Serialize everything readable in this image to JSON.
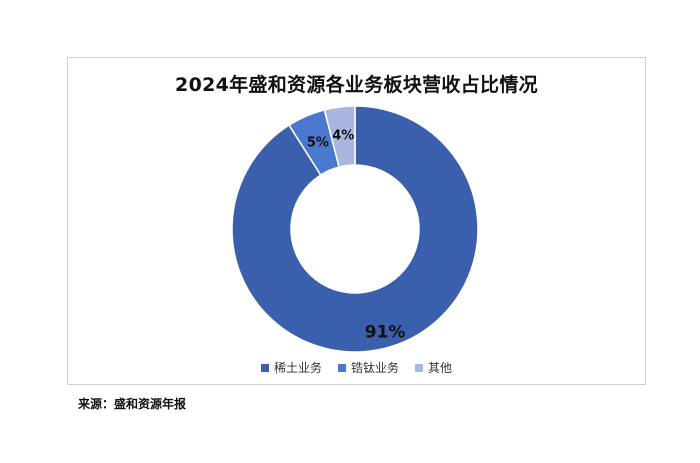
{
  "chart_data": {
    "type": "pie",
    "variant": "donut",
    "title": "2024年盛和资源各业务板块营收占比情况",
    "categories": [
      "稀土业务",
      "锆钛业务",
      "其他"
    ],
    "values": [
      91,
      5,
      4
    ],
    "data_labels": [
      "91%",
      "5%",
      "4%"
    ],
    "colors": [
      "#3a5fac",
      "#4a78cf",
      "#a9b7e0"
    ],
    "legend_position": "bottom",
    "start_angle": "12 o'clock, clockwise"
  },
  "source_note": "来源：盛和资源年报"
}
